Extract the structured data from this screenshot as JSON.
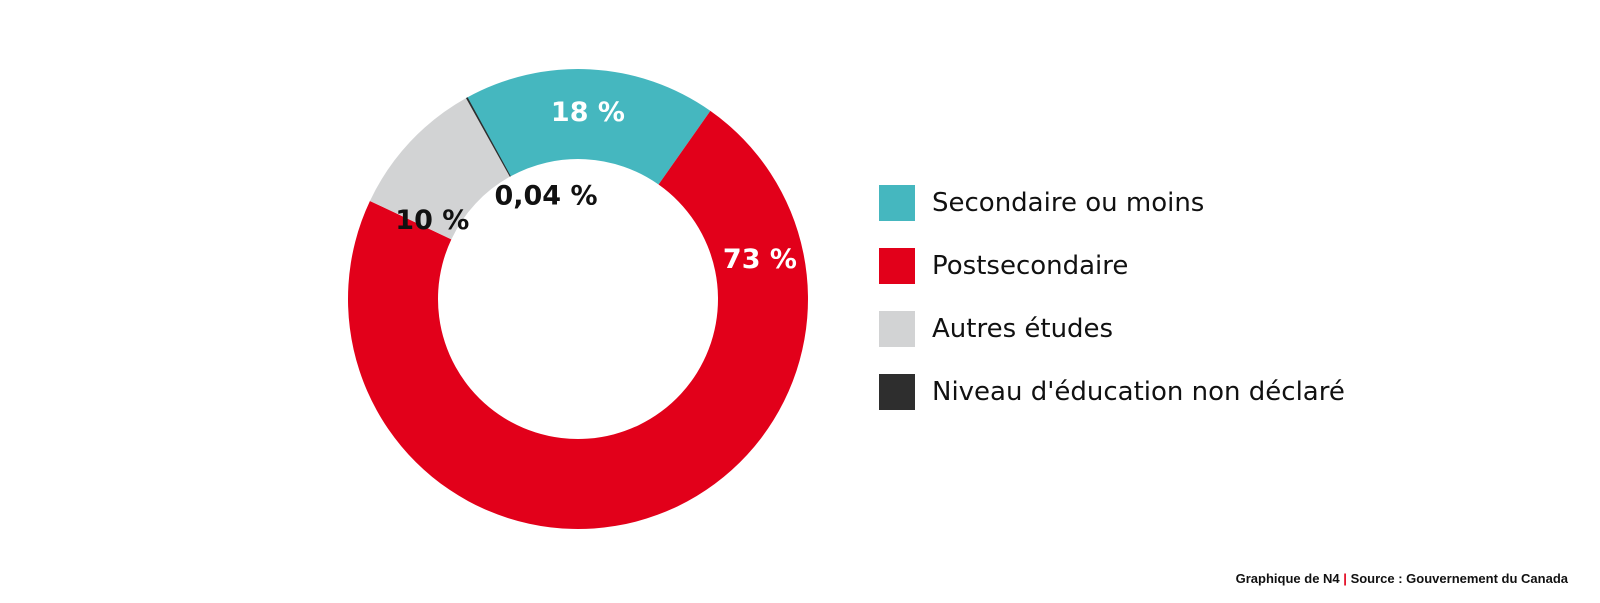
{
  "chart_data": {
    "type": "pie",
    "variant": "donut",
    "slices": [
      {
        "label": "Secondaire ou moins",
        "value": 18,
        "display": "18 %",
        "color": "#45b7bf",
        "label_color": "#ffffff"
      },
      {
        "label": "Postsecondaire",
        "value": 73,
        "display": "73 %",
        "color": "#e2001a",
        "label_color": "#ffffff"
      },
      {
        "label": "Autres études",
        "value": 10,
        "display": "10 %",
        "color": "#d2d3d4",
        "label_color": "#111111"
      },
      {
        "label": "Niveau d'éducation non déclaré",
        "value": 0.04,
        "display": "0,04 %",
        "color": "#2e2e2e",
        "label_color": "#111111"
      }
    ],
    "legend_position": "right"
  },
  "footer": {
    "credit": "Graphique de N4",
    "separator": "|",
    "source": "Source : Gouvernement du Canada"
  }
}
